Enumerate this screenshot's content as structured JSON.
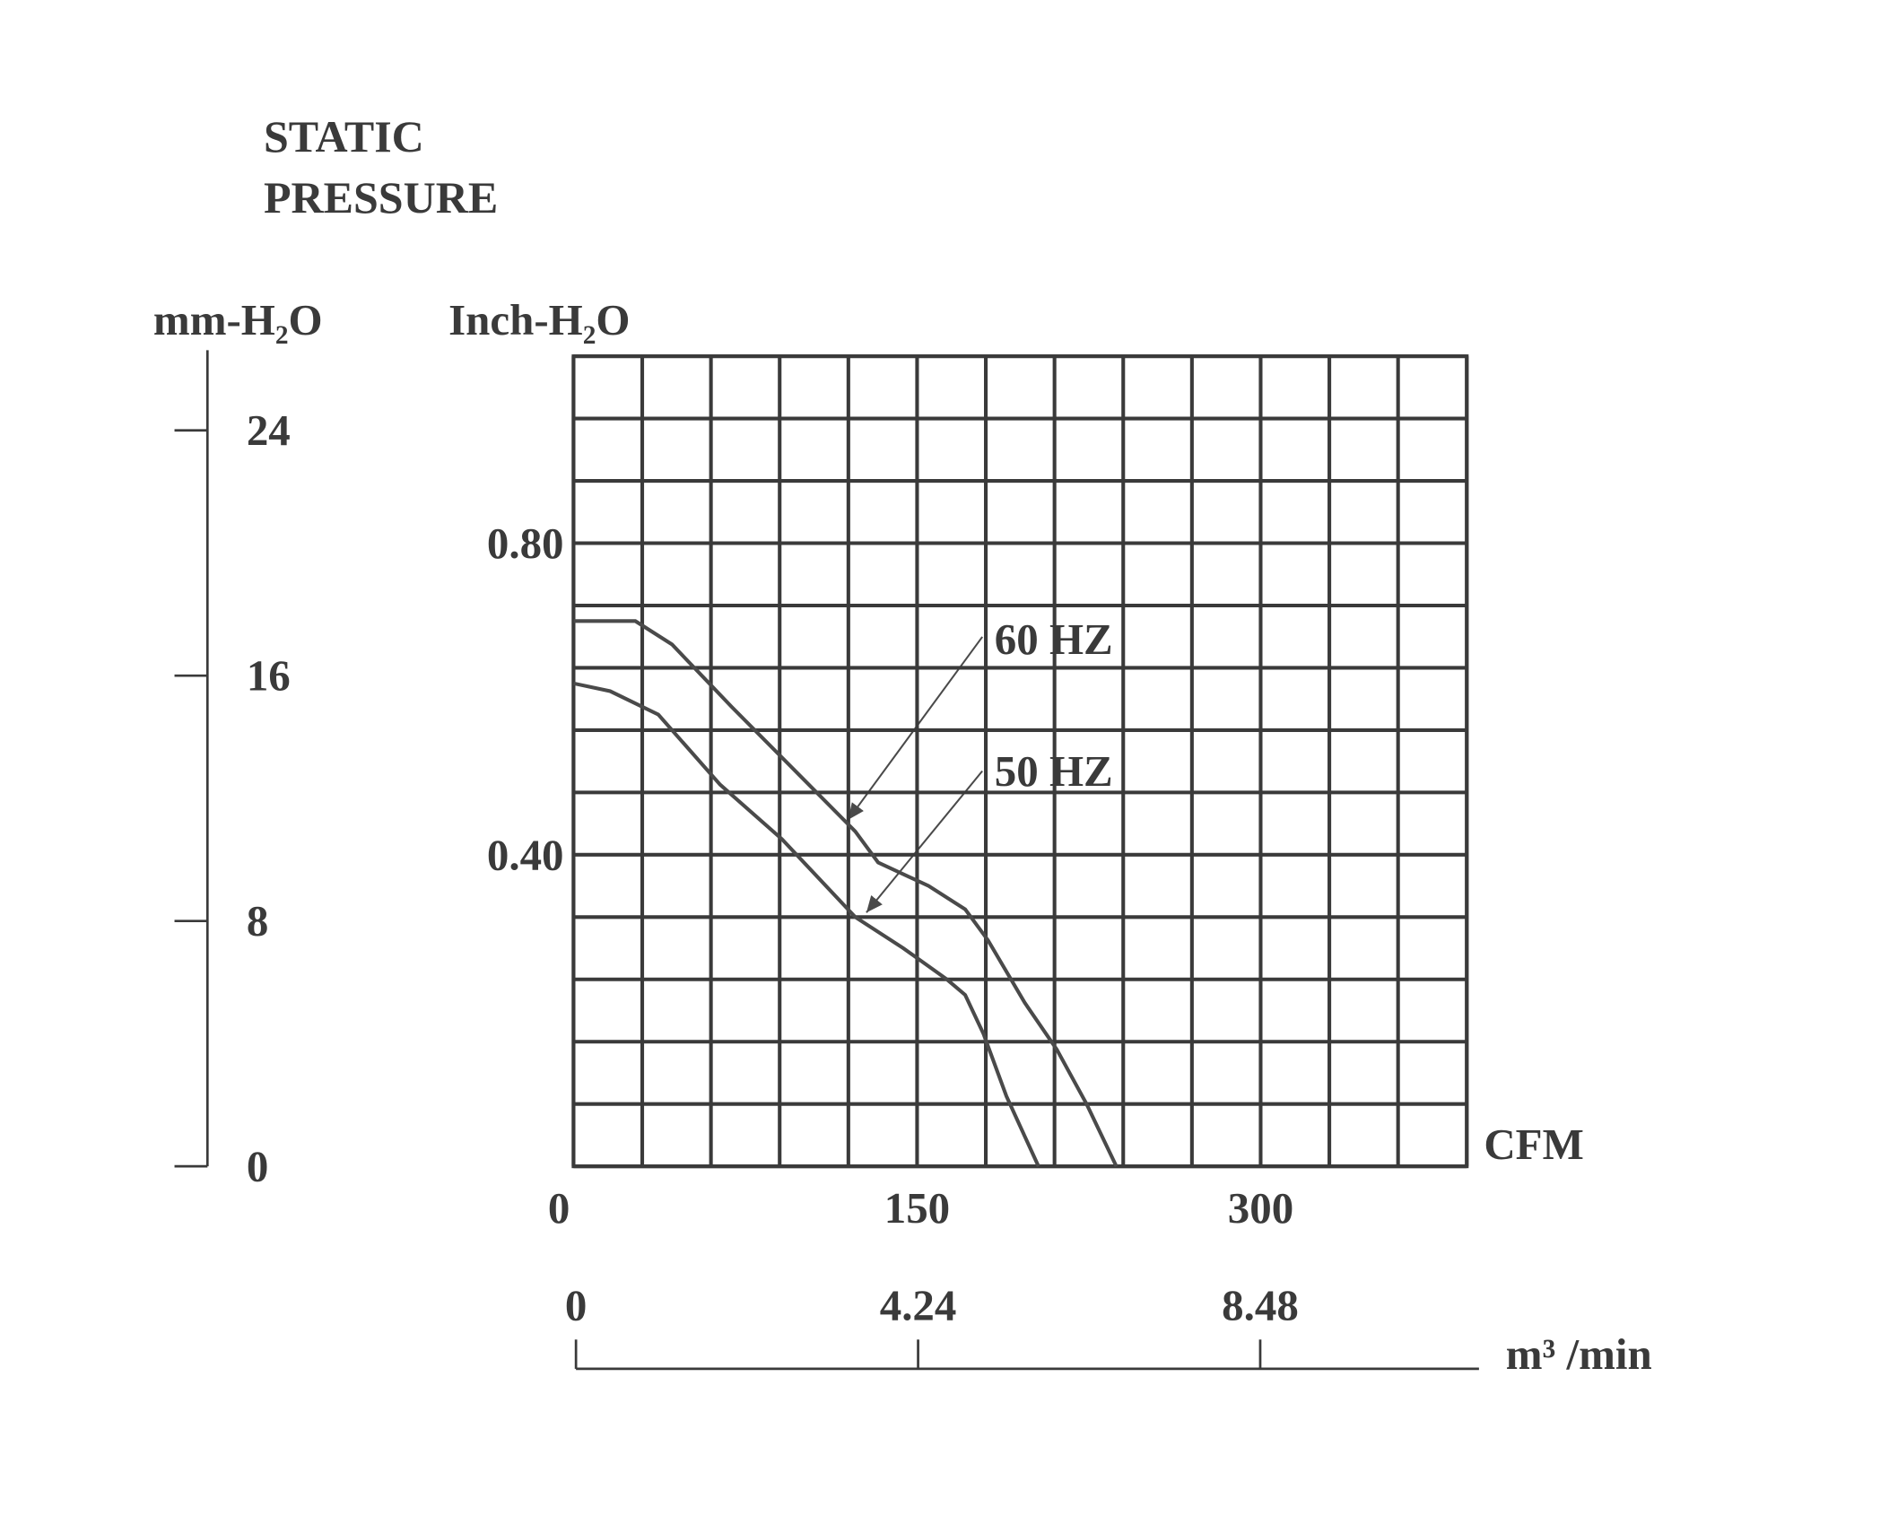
{
  "chart_data": {
    "type": "line",
    "title": "STATIC PRESSURE",
    "ylabel": "Inch-H₂O",
    "y2label": "mm-H₂O",
    "xlabel": "CFM",
    "x2label": "m³ /min",
    "xlim": [
      0,
      390
    ],
    "xticks": [
      0,
      150,
      300
    ],
    "xgrid": [
      0,
      30,
      60,
      90,
      120,
      150,
      180,
      210,
      240,
      270,
      300,
      330,
      360,
      390
    ],
    "ylim": [
      0,
      1.04
    ],
    "yticks": [
      {
        "value": 0.4,
        "label": "0.40"
      },
      {
        "value": 0.8,
        "label": "0.80"
      }
    ],
    "ygrid": [
      0,
      0.08,
      0.16,
      0.24,
      0.32,
      0.4,
      0.48,
      0.56,
      0.64,
      0.72,
      0.8,
      0.88,
      0.96,
      1.04
    ],
    "y2lim": [
      0,
      26.416
    ],
    "y2ticks": [
      0,
      8,
      16,
      24
    ],
    "x2lim": [
      0,
      11.04
    ],
    "x2ticks": [
      0,
      4.24,
      8.48
    ],
    "grid": true,
    "series": [
      {
        "name": "60 HZ",
        "color": "#4a4a4a",
        "x": [
          0,
          27,
          43,
          69,
          96,
          123,
          133,
          155,
          171,
          181,
          197,
          211,
          224,
          237
        ],
        "values": [
          0.7,
          0.7,
          0.67,
          0.59,
          0.51,
          0.43,
          0.39,
          0.36,
          0.33,
          0.29,
          0.21,
          0.15,
          0.08,
          0.0
        ]
      },
      {
        "name": "50 HZ",
        "color": "#4a4a4a",
        "x": [
          0,
          16,
          37,
          64,
          91,
          123,
          144,
          163,
          171,
          179,
          189,
          203
        ],
        "values": [
          0.62,
          0.61,
          0.58,
          0.49,
          0.42,
          0.32,
          0.28,
          0.24,
          0.22,
          0.17,
          0.09,
          0.0
        ]
      }
    ]
  }
}
